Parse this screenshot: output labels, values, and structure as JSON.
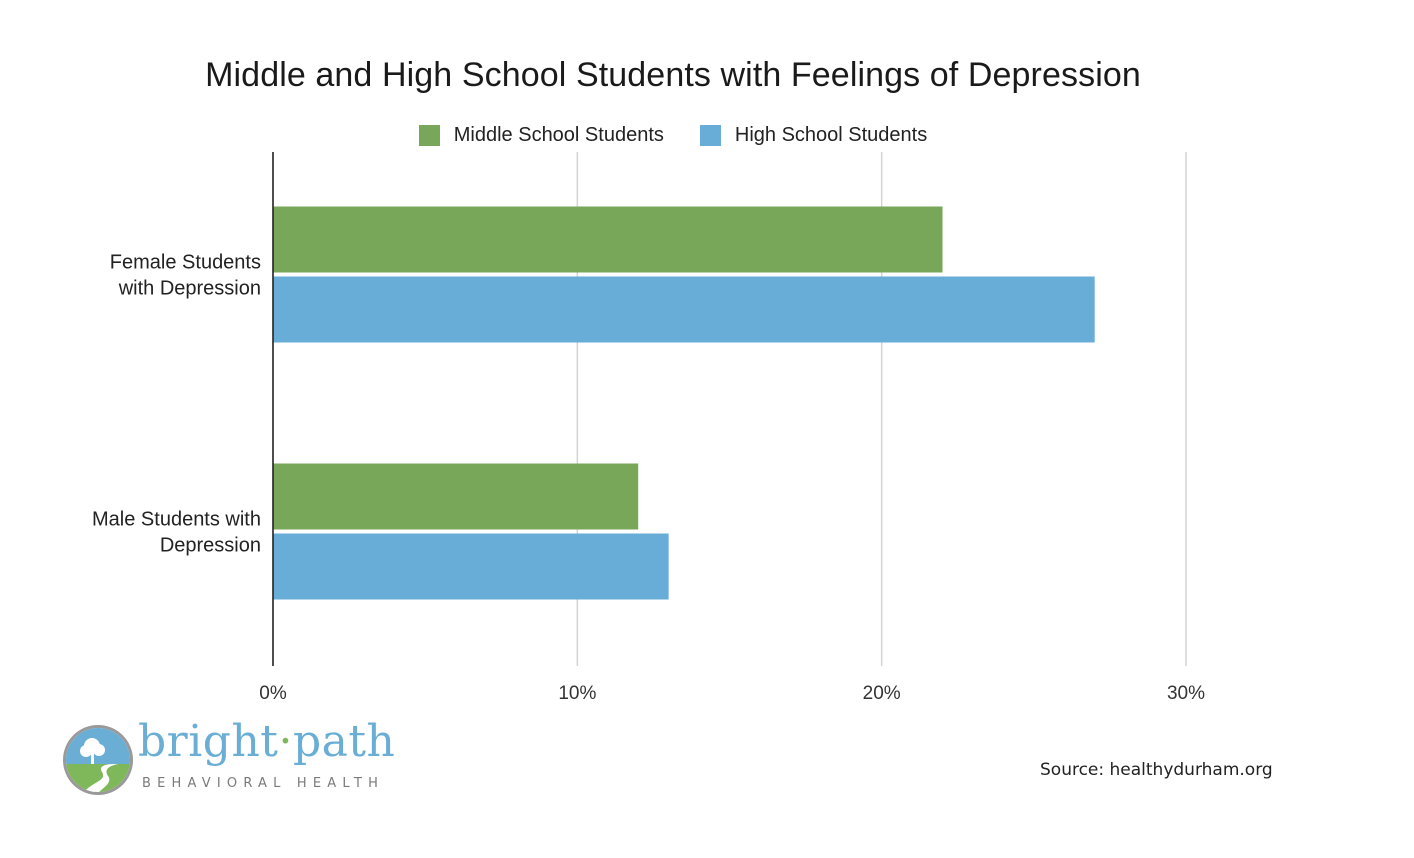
{
  "chart_data": {
    "type": "bar",
    "orientation": "horizontal",
    "title": "Middle and High School Students with Feelings of Depression",
    "categories": [
      "Female Students with Depression",
      "Male Students with Depression"
    ],
    "category_label_lines": [
      [
        "Female Students",
        "with Depression"
      ],
      [
        "Male Students with",
        "Depression"
      ]
    ],
    "series": [
      {
        "name": "Middle School Students",
        "color": "#79a75a",
        "values": [
          22,
          12
        ]
      },
      {
        "name": "High School Students",
        "color": "#68add7",
        "values": [
          27,
          13
        ]
      }
    ],
    "xlim": [
      0,
      30
    ],
    "x_ticks": [
      0,
      10,
      20,
      30
    ],
    "x_tick_labels": [
      "0%",
      "10%",
      "20%",
      "30%"
    ],
    "xlabel": "",
    "ylabel": "",
    "grid": "vertical",
    "legend_position": "top-center"
  },
  "logo": {
    "word_left": "bright",
    "separator": "·",
    "word_right": "path",
    "tagline": "BEHAVIORAL HEALTH"
  },
  "source": "Source: healthydurham.org"
}
